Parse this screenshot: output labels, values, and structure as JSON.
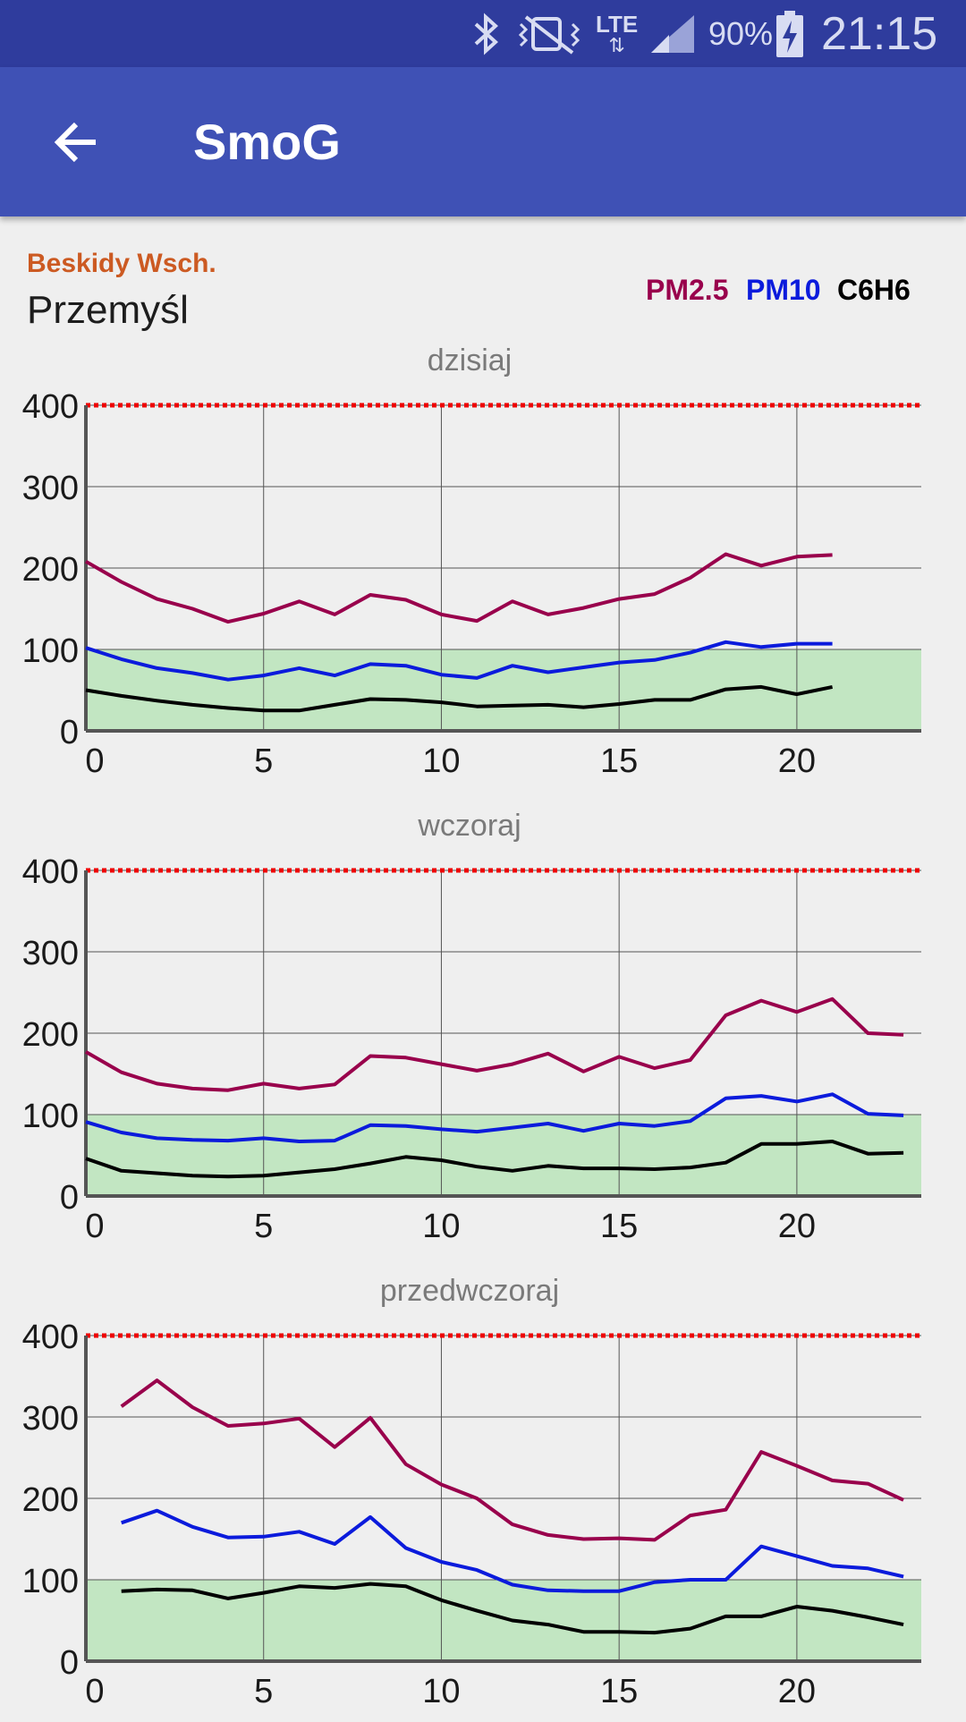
{
  "status_bar": {
    "battery_percent": "90%",
    "time": "21:15",
    "network_label": "LTE",
    "icons": [
      "bluetooth-icon",
      "vibrate-mute-icon",
      "lte-data-icon",
      "signal-icon",
      "battery-charging-icon"
    ]
  },
  "app_bar": {
    "title": "SmoG",
    "back_icon": "arrow-back-icon"
  },
  "station": {
    "region": "Beskidy Wsch.",
    "city": "Przemyśl"
  },
  "legend": [
    {
      "label": "PM2.5",
      "color": "#99004c"
    },
    {
      "label": "PM10",
      "color": "#0b1bdc"
    },
    {
      "label": "C6H6",
      "color": "#000000"
    }
  ],
  "colors": {
    "norm_band": "#c2e6c2",
    "limit_line": "#ee0000",
    "grid": "#555555"
  },
  "chart_data": [
    {
      "type": "line",
      "title": "dzisiaj",
      "xlim": [
        0,
        23.5
      ],
      "ylim": [
        0,
        400
      ],
      "xticks": [
        0,
        5,
        10,
        15,
        20
      ],
      "yticks": [
        0,
        100,
        200,
        300,
        400
      ],
      "norm_band": [
        0,
        100
      ],
      "limit_line": 400,
      "series": [
        {
          "name": "PM2.5",
          "color": "#99004c",
          "x": [
            0,
            1,
            2,
            3,
            4,
            5,
            6,
            7,
            8,
            9,
            10,
            11,
            12,
            13,
            14,
            15,
            16,
            17,
            18,
            19,
            20,
            21
          ],
          "y": [
            208,
            183,
            162,
            150,
            134,
            144,
            159,
            143,
            167,
            161,
            143,
            135,
            159,
            143,
            151,
            162,
            168,
            188,
            217,
            203,
            214,
            216
          ]
        },
        {
          "name": "PM10",
          "color": "#0b1bdc",
          "x": [
            0,
            1,
            2,
            3,
            4,
            5,
            6,
            7,
            8,
            9,
            10,
            11,
            12,
            13,
            14,
            15,
            16,
            17,
            18,
            19,
            20,
            21
          ],
          "y": [
            102,
            88,
            77,
            71,
            63,
            68,
            77,
            68,
            82,
            80,
            69,
            65,
            80,
            72,
            78,
            84,
            87,
            96,
            109,
            103,
            107,
            107
          ]
        },
        {
          "name": "C6H6",
          "color": "#000000",
          "x": [
            0,
            1,
            2,
            3,
            4,
            5,
            6,
            7,
            8,
            9,
            10,
            11,
            12,
            13,
            14,
            15,
            16,
            17,
            18,
            19,
            20,
            21
          ],
          "y": [
            50,
            43,
            37,
            32,
            28,
            25,
            25,
            32,
            39,
            38,
            35,
            30,
            31,
            32,
            29,
            33,
            38,
            38,
            51,
            54,
            45,
            54
          ]
        }
      ]
    },
    {
      "type": "line",
      "title": "wczoraj",
      "xlim": [
        0,
        23.5
      ],
      "ylim": [
        0,
        400
      ],
      "xticks": [
        0,
        5,
        10,
        15,
        20
      ],
      "yticks": [
        0,
        100,
        200,
        300,
        400
      ],
      "norm_band": [
        0,
        100
      ],
      "limit_line": 400,
      "series": [
        {
          "name": "PM2.5",
          "color": "#99004c",
          "x": [
            0,
            1,
            2,
            3,
            4,
            5,
            6,
            7,
            8,
            9,
            10,
            11,
            12,
            13,
            14,
            15,
            16,
            17,
            18,
            19,
            20,
            21,
            22,
            23
          ],
          "y": [
            177,
            152,
            138,
            132,
            130,
            138,
            132,
            137,
            172,
            170,
            162,
            154,
            162,
            175,
            153,
            171,
            157,
            167,
            222,
            240,
            226,
            242,
            200,
            198
          ]
        },
        {
          "name": "PM10",
          "color": "#0b1bdc",
          "x": [
            0,
            1,
            2,
            3,
            4,
            5,
            6,
            7,
            8,
            9,
            10,
            11,
            12,
            13,
            14,
            15,
            16,
            17,
            18,
            19,
            20,
            21,
            22,
            23
          ],
          "y": [
            91,
            78,
            71,
            69,
            68,
            71,
            67,
            68,
            87,
            86,
            82,
            79,
            84,
            89,
            80,
            89,
            86,
            92,
            120,
            123,
            116,
            125,
            101,
            99
          ]
        },
        {
          "name": "C6H6",
          "color": "#000000",
          "x": [
            0,
            1,
            2,
            3,
            4,
            5,
            6,
            7,
            8,
            9,
            10,
            11,
            12,
            13,
            14,
            15,
            16,
            17,
            18,
            19,
            20,
            21,
            22,
            23
          ],
          "y": [
            46,
            31,
            28,
            25,
            24,
            25,
            29,
            33,
            40,
            48,
            44,
            36,
            31,
            37,
            34,
            34,
            33,
            35,
            41,
            64,
            64,
            67,
            52,
            53
          ]
        }
      ]
    },
    {
      "type": "line",
      "title": "przedwczoraj",
      "xlim": [
        0,
        23.5
      ],
      "ylim": [
        0,
        400
      ],
      "xticks": [
        0,
        5,
        10,
        15,
        20
      ],
      "yticks": [
        0,
        100,
        200,
        300,
        400
      ],
      "norm_band": [
        0,
        100
      ],
      "limit_line": 400,
      "series": [
        {
          "name": "PM2.5",
          "color": "#99004c",
          "x": [
            1,
            2,
            3,
            4,
            5,
            6,
            7,
            8,
            9,
            10,
            11,
            12,
            13,
            14,
            15,
            16,
            17,
            18,
            19,
            20,
            21,
            22,
            23
          ],
          "y": [
            313,
            345,
            312,
            289,
            292,
            298,
            263,
            299,
            242,
            217,
            200,
            168,
            155,
            150,
            151,
            149,
            179,
            186,
            257,
            240,
            222,
            218,
            198
          ]
        },
        {
          "name": "PM10",
          "color": "#0b1bdc",
          "x": [
            1,
            2,
            3,
            4,
            5,
            6,
            7,
            8,
            9,
            10,
            11,
            12,
            13,
            14,
            15,
            16,
            17,
            18,
            19,
            20,
            21,
            22,
            23
          ],
          "y": [
            170,
            185,
            165,
            152,
            153,
            159,
            144,
            177,
            139,
            122,
            112,
            94,
            87,
            86,
            86,
            97,
            100,
            100,
            141,
            129,
            117,
            114,
            104
          ]
        },
        {
          "name": "C6H6",
          "color": "#000000",
          "x": [
            1,
            2,
            3,
            4,
            5,
            6,
            7,
            8,
            9,
            10,
            11,
            12,
            13,
            14,
            15,
            16,
            17,
            18,
            19,
            20,
            21,
            22,
            23
          ],
          "y": [
            86,
            88,
            87,
            77,
            84,
            92,
            90,
            95,
            92,
            75,
            62,
            50,
            45,
            36,
            36,
            35,
            40,
            55,
            55,
            67,
            62,
            54,
            45
          ]
        }
      ]
    }
  ]
}
